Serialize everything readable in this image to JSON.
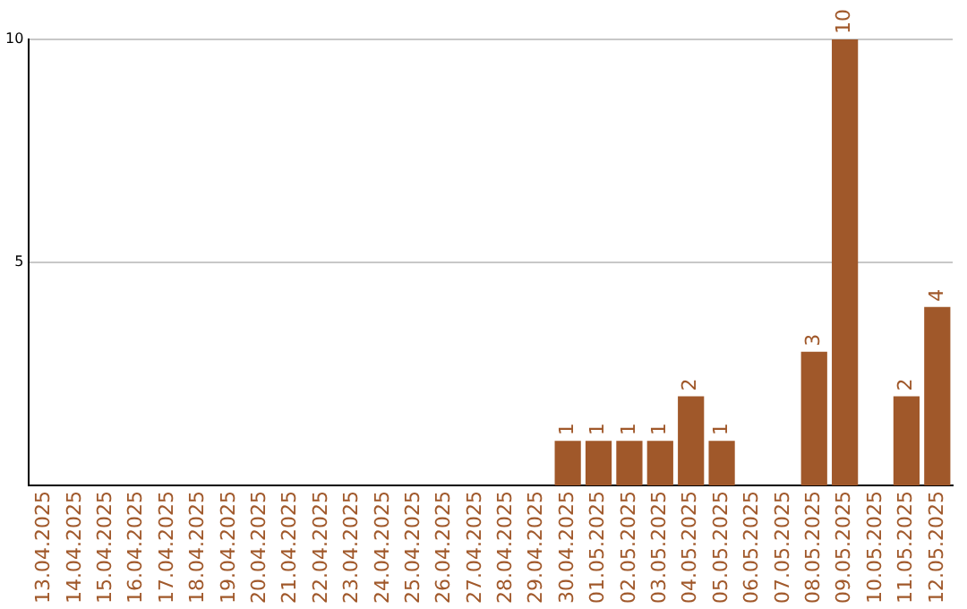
{
  "chart_data": {
    "type": "bar",
    "categories": [
      "13.04.2025",
      "14.04.2025",
      "15.04.2025",
      "16.04.2025",
      "17.04.2025",
      "18.04.2025",
      "19.04.2025",
      "20.04.2025",
      "21.04.2025",
      "22.04.2025",
      "23.04.2025",
      "24.04.2025",
      "25.04.2025",
      "26.04.2025",
      "27.04.2025",
      "28.04.2025",
      "29.04.2025",
      "30.04.2025",
      "01.05.2025",
      "02.05.2025",
      "03.05.2025",
      "04.05.2025",
      "05.05.2025",
      "06.05.2025",
      "07.05.2025",
      "08.05.2025",
      "09.05.2025",
      "10.05.2025",
      "11.05.2025",
      "12.05.2025"
    ],
    "values": [
      0,
      0,
      0,
      0,
      0,
      0,
      0,
      0,
      0,
      0,
      0,
      0,
      0,
      0,
      0,
      0,
      0,
      1,
      1,
      1,
      1,
      2,
      1,
      0,
      0,
      3,
      10,
      0,
      2,
      4
    ],
    "value_labels": [
      null,
      null,
      null,
      null,
      null,
      null,
      null,
      null,
      null,
      null,
      null,
      null,
      null,
      null,
      null,
      null,
      null,
      "1",
      "1",
      "1",
      "1",
      "2",
      "1",
      null,
      null,
      "3",
      "10",
      null,
      "2",
      "4"
    ],
    "color": "#a0582a",
    "ylim": [
      0,
      10
    ],
    "yticks": [
      5,
      10
    ],
    "grid": "y"
  }
}
